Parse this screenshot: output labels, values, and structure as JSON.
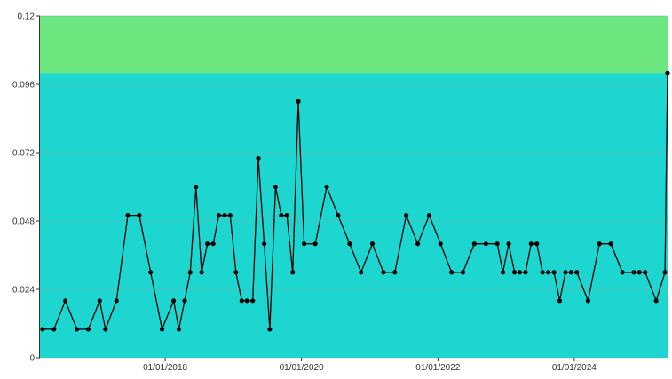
{
  "chart_data": {
    "type": "line",
    "title": "",
    "xlabel": "",
    "ylabel": "",
    "ylim": [
      0,
      0.12
    ],
    "xlim": [
      "2016-03-01",
      "2025-05-15"
    ],
    "y_ticks": [
      0,
      0.024,
      0.048,
      0.072,
      0.096,
      0.12
    ],
    "y_tick_labels": [
      "0",
      "0.024",
      "0.048",
      "0.072",
      "0.096",
      "0.12"
    ],
    "x_ticks": [
      "2018-01-01",
      "2020-01-01",
      "2022-01-01",
      "2024-01-01"
    ],
    "x_tick_labels": [
      "01/01/2018",
      "01/01/2020",
      "01/01/2022",
      "01/01/2024"
    ],
    "grid": "horizontal",
    "bands": [
      {
        "from": 0,
        "to": 0.1,
        "color": "#1dd6d0"
      },
      {
        "from": 0.1,
        "to": 0.12,
        "color": "#6ce67f"
      }
    ],
    "line_color": "#000000",
    "points": [
      [
        "2016-03-15",
        0.01
      ],
      [
        "2016-05-15",
        0.01
      ],
      [
        "2016-07-15",
        0.02
      ],
      [
        "2016-09-15",
        0.01
      ],
      [
        "2016-11-15",
        0.01
      ],
      [
        "2017-01-15",
        0.02
      ],
      [
        "2017-02-15",
        0.01
      ],
      [
        "2017-04-15",
        0.02
      ],
      [
        "2017-06-15",
        0.05
      ],
      [
        "2017-08-15",
        0.05
      ],
      [
        "2017-10-15",
        0.03
      ],
      [
        "2017-12-15",
        0.01
      ],
      [
        "2018-02-15",
        0.02
      ],
      [
        "2018-03-15",
        0.01
      ],
      [
        "2018-04-15",
        0.02
      ],
      [
        "2018-05-15",
        0.03
      ],
      [
        "2018-06-15",
        0.06
      ],
      [
        "2018-07-15",
        0.03
      ],
      [
        "2018-08-15",
        0.04
      ],
      [
        "2018-09-15",
        0.04
      ],
      [
        "2018-10-15",
        0.05
      ],
      [
        "2018-11-15",
        0.05
      ],
      [
        "2018-12-15",
        0.05
      ],
      [
        "2019-01-15",
        0.03
      ],
      [
        "2019-02-15",
        0.02
      ],
      [
        "2019-03-15",
        0.02
      ],
      [
        "2019-04-15",
        0.02
      ],
      [
        "2019-05-15",
        0.07
      ],
      [
        "2019-06-15",
        0.04
      ],
      [
        "2019-07-15",
        0.01
      ],
      [
        "2019-08-15",
        0.06
      ],
      [
        "2019-09-15",
        0.05
      ],
      [
        "2019-10-15",
        0.05
      ],
      [
        "2019-11-15",
        0.03
      ],
      [
        "2019-12-15",
        0.09
      ],
      [
        "2020-01-15",
        0.04
      ],
      [
        "2020-03-15",
        0.04
      ],
      [
        "2020-05-15",
        0.06
      ],
      [
        "2020-07-15",
        0.05
      ],
      [
        "2020-09-15",
        0.04
      ],
      [
        "2020-11-15",
        0.03
      ],
      [
        "2021-01-15",
        0.04
      ],
      [
        "2021-03-15",
        0.03
      ],
      [
        "2021-05-15",
        0.03
      ],
      [
        "2021-07-15",
        0.05
      ],
      [
        "2021-09-15",
        0.04
      ],
      [
        "2021-11-15",
        0.05
      ],
      [
        "2022-01-15",
        0.04
      ],
      [
        "2022-03-15",
        0.03
      ],
      [
        "2022-05-15",
        0.03
      ],
      [
        "2022-07-15",
        0.04
      ],
      [
        "2022-09-15",
        0.04
      ],
      [
        "2022-11-15",
        0.04
      ],
      [
        "2022-12-15",
        0.03
      ],
      [
        "2023-01-15",
        0.04
      ],
      [
        "2023-02-15",
        0.03
      ],
      [
        "2023-03-15",
        0.03
      ],
      [
        "2023-04-15",
        0.03
      ],
      [
        "2023-05-15",
        0.04
      ],
      [
        "2023-06-15",
        0.04
      ],
      [
        "2023-07-15",
        0.03
      ],
      [
        "2023-08-15",
        0.03
      ],
      [
        "2023-09-15",
        0.03
      ],
      [
        "2023-10-15",
        0.02
      ],
      [
        "2023-11-15",
        0.03
      ],
      [
        "2023-12-15",
        0.03
      ],
      [
        "2024-01-15",
        0.03
      ],
      [
        "2024-03-15",
        0.02
      ],
      [
        "2024-05-15",
        0.04
      ],
      [
        "2024-07-15",
        0.04
      ],
      [
        "2024-09-15",
        0.03
      ],
      [
        "2024-11-15",
        0.03
      ],
      [
        "2024-12-15",
        0.03
      ],
      [
        "2025-01-15",
        0.03
      ],
      [
        "2025-03-15",
        0.02
      ],
      [
        "2025-05-01",
        0.03
      ],
      [
        "2025-05-15",
        0.1
      ]
    ]
  }
}
